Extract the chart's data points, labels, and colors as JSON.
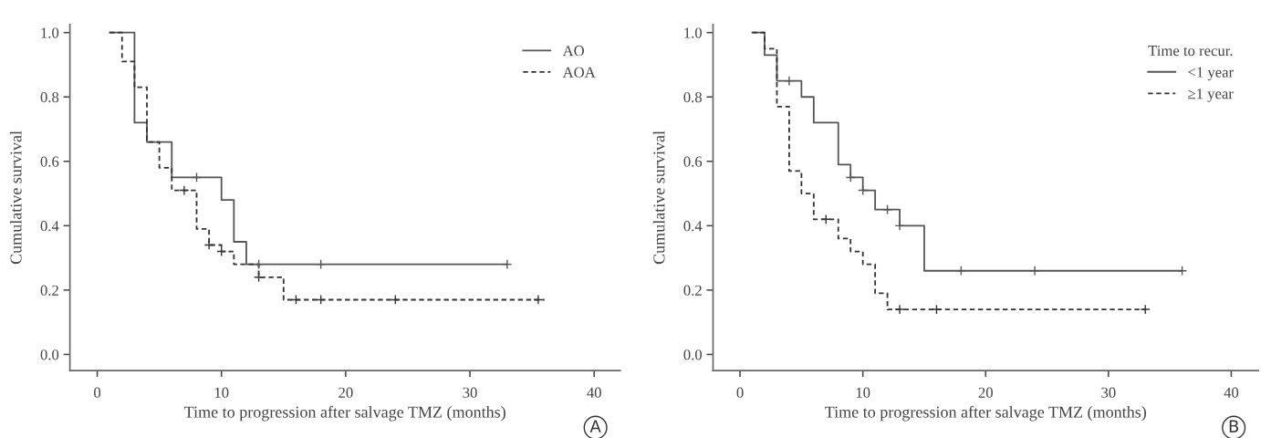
{
  "chart_data": [
    {
      "type": "step",
      "xlabel": "Time to progression after salvage TMZ (months)",
      "ylabel": "Cumulative survival",
      "xlim": [
        -2.2,
        42.1
      ],
      "xticks": [
        0,
        10,
        20,
        30,
        40
      ],
      "ylim": [
        -0.05,
        1.025
      ],
      "yticks": [
        {
          "value": 0,
          "label": "0.0"
        },
        {
          "value": 0.2,
          "label": "0.2"
        },
        {
          "value": 0.4,
          "label": "0.4"
        },
        {
          "value": 0.6,
          "label": "0.6"
        },
        {
          "value": 0.8,
          "label": "0.8"
        },
        {
          "value": 1,
          "label": "1.0"
        }
      ],
      "grid": false,
      "legend": "top right",
      "annotations": [
        "A"
      ],
      "series": [
        {
          "name": "AO",
          "line_style": "solid",
          "color": "#555555",
          "x": [
            1,
            3,
            4,
            6,
            10,
            11,
            12,
            33
          ],
          "values": [
            1.0,
            0.72,
            0.66,
            0.55,
            0.48,
            0.35,
            0.28,
            0.28
          ]
        },
        {
          "name": "AOA",
          "line_style": "dashed",
          "color": "#333333",
          "x": [
            1,
            2,
            3,
            4,
            5,
            6,
            8,
            9,
            10,
            11,
            13,
            15,
            36
          ],
          "values": [
            1.0,
            0.91,
            0.83,
            0.66,
            0.58,
            0.51,
            0.39,
            0.34,
            0.32,
            0.28,
            0.24,
            0.17,
            0.17
          ]
        },
        {
          "type": "scatter",
          "marker": "cross",
          "color": "#555555",
          "x": [
            8,
            13,
            18,
            33
          ],
          "values": [
            0.55,
            0.28,
            0.28,
            0.28
          ]
        },
        {
          "type": "scatter",
          "marker": "cross",
          "color": "#333333",
          "x": [
            7,
            9,
            10,
            13,
            16,
            18,
            24,
            35.5
          ],
          "values": [
            0.51,
            0.34,
            0.32,
            0.24,
            0.17,
            0.17,
            0.17,
            0.17
          ]
        }
      ]
    },
    {
      "type": "step",
      "xlabel": "Time to progression after salvage TMZ (months)",
      "ylabel": "Cumulative survival",
      "xlim": [
        -2.2,
        42.2
      ],
      "xticks": [
        0,
        10,
        20,
        30,
        40
      ],
      "ylim": [
        -0.05,
        1.025
      ],
      "yticks": [
        {
          "value": 0,
          "label": "0.0"
        },
        {
          "value": 0.2,
          "label": "0.2"
        },
        {
          "value": 0.4,
          "label": "0.4"
        },
        {
          "value": 0.6,
          "label": "0.6"
        },
        {
          "value": 0.8,
          "label": "0.8"
        },
        {
          "value": 1,
          "label": "1.0"
        }
      ],
      "grid": false,
      "legend": "top right",
      "legend_title": "Time to recur.",
      "annotations": [
        "B"
      ],
      "series": [
        {
          "name": "<1 year",
          "line_style": "solid",
          "color": "#555555",
          "x": [
            1,
            2,
            3,
            5,
            6,
            8,
            9,
            10,
            11,
            13,
            15,
            36
          ],
          "values": [
            1.0,
            0.93,
            0.85,
            0.8,
            0.72,
            0.59,
            0.55,
            0.51,
            0.45,
            0.4,
            0.26,
            0.26
          ]
        },
        {
          "name": "≥1 year",
          "line_style": "dashed",
          "color": "#333333",
          "x": [
            1,
            2,
            3,
            4,
            5,
            6,
            8,
            9,
            10,
            11,
            12,
            33
          ],
          "values": [
            1.0,
            0.95,
            0.77,
            0.57,
            0.5,
            0.42,
            0.36,
            0.32,
            0.28,
            0.19,
            0.14,
            0.14
          ]
        },
        {
          "type": "scatter",
          "marker": "cross",
          "color": "#555555",
          "x": [
            4,
            9,
            10,
            12,
            13,
            18,
            24,
            36
          ],
          "values": [
            0.85,
            0.55,
            0.51,
            0.45,
            0.4,
            0.26,
            0.26,
            0.26
          ]
        },
        {
          "type": "scatter",
          "marker": "cross",
          "color": "#333333",
          "x": [
            7,
            13,
            16,
            33
          ],
          "values": [
            0.42,
            0.14,
            0.14,
            0.14
          ]
        }
      ]
    }
  ]
}
